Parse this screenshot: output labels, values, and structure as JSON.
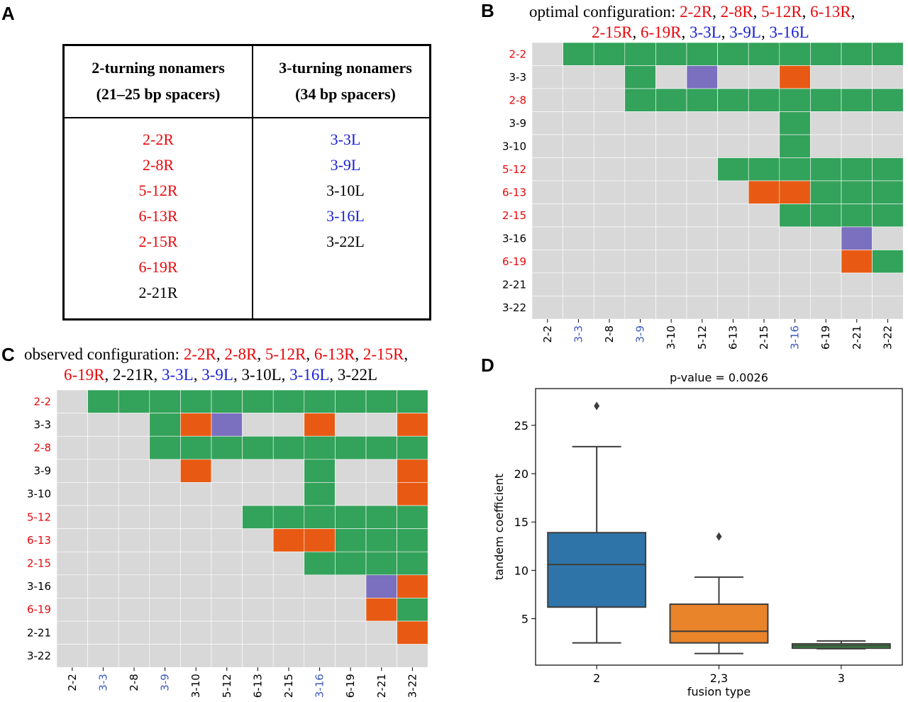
{
  "panels": {
    "a": "A",
    "b": "B",
    "c": "C",
    "d": "D"
  },
  "colors": {
    "red": "#e8080c",
    "blue": "#1a21d8",
    "black": "#000000",
    "axis_blue": "#3f5bbf",
    "green": "#33a25a",
    "orange": "#e85a13",
    "purple": "#7b6fbf",
    "grey": "#d8d8d8"
  },
  "table": {
    "col1_header": [
      "2-turning nonamers",
      "(21–25 bp spacers)"
    ],
    "col2_header": [
      "3-turning nonamers",
      "(34 bp spacers)"
    ],
    "col1": [
      {
        "text": "2-2R",
        "color": "red"
      },
      {
        "text": "2-8R",
        "color": "red"
      },
      {
        "text": "5-12R",
        "color": "red"
      },
      {
        "text": "6-13R",
        "color": "red"
      },
      {
        "text": "2-15R",
        "color": "red"
      },
      {
        "text": "6-19R",
        "color": "red"
      },
      {
        "text": "2-21R",
        "color": "black"
      }
    ],
    "col2": [
      {
        "text": "3-3L",
        "color": "blue"
      },
      {
        "text": "3-9L",
        "color": "blue"
      },
      {
        "text": "3-10L",
        "color": "black"
      },
      {
        "text": "3-16L",
        "color": "blue"
      },
      {
        "text": "3-22L",
        "color": "black"
      }
    ]
  },
  "chart_data": [
    {
      "type": "heatmap",
      "id": "B",
      "title_lines": [
        [
          {
            "text": "optimal configuration: ",
            "color": "black"
          },
          {
            "text": "2-2R",
            "color": "red"
          },
          {
            "text": ", ",
            "color": "black"
          },
          {
            "text": "2-8R",
            "color": "red"
          },
          {
            "text": ", ",
            "color": "black"
          },
          {
            "text": "5-12R",
            "color": "red"
          },
          {
            "text": ", ",
            "color": "black"
          },
          {
            "text": "6-13R",
            "color": "red"
          },
          {
            "text": ",",
            "color": "black"
          }
        ],
        [
          {
            "text": "2-15R",
            "color": "red"
          },
          {
            "text": ", ",
            "color": "black"
          },
          {
            "text": "6-19R",
            "color": "red"
          },
          {
            "text": ", ",
            "color": "black"
          },
          {
            "text": "3-3L",
            "color": "blue"
          },
          {
            "text": ", ",
            "color": "black"
          },
          {
            "text": "3-9L",
            "color": "blue"
          },
          {
            "text": ", ",
            "color": "black"
          },
          {
            "text": "3-16L",
            "color": "blue"
          }
        ]
      ],
      "labels": [
        "2-2",
        "3-3",
        "2-8",
        "3-9",
        "3-10",
        "5-12",
        "6-13",
        "2-15",
        "3-16",
        "6-19",
        "2-21",
        "3-22"
      ],
      "row_label_colors": [
        "red",
        "black",
        "red",
        "black",
        "black",
        "red",
        "red",
        "red",
        "black",
        "red",
        "black",
        "black"
      ],
      "col_label_colors": [
        "black",
        "axis_blue",
        "black",
        "axis_blue",
        "black",
        "black",
        "black",
        "black",
        "axis_blue",
        "black",
        "black",
        "black"
      ],
      "legend": {
        "0": "grey",
        "1": "green",
        "2": "orange",
        "3": "purple"
      },
      "matrix": [
        [
          0,
          1,
          1,
          1,
          1,
          1,
          1,
          1,
          1,
          1,
          1,
          1
        ],
        [
          0,
          0,
          0,
          1,
          0,
          3,
          0,
          0,
          2,
          0,
          0,
          0
        ],
        [
          0,
          0,
          0,
          1,
          1,
          1,
          1,
          1,
          1,
          1,
          1,
          1
        ],
        [
          0,
          0,
          0,
          0,
          0,
          0,
          0,
          0,
          1,
          0,
          0,
          0
        ],
        [
          0,
          0,
          0,
          0,
          0,
          0,
          0,
          0,
          1,
          0,
          0,
          0
        ],
        [
          0,
          0,
          0,
          0,
          0,
          0,
          1,
          1,
          1,
          1,
          1,
          1
        ],
        [
          0,
          0,
          0,
          0,
          0,
          0,
          0,
          2,
          2,
          1,
          1,
          1
        ],
        [
          0,
          0,
          0,
          0,
          0,
          0,
          0,
          0,
          1,
          1,
          1,
          1
        ],
        [
          0,
          0,
          0,
          0,
          0,
          0,
          0,
          0,
          0,
          0,
          3,
          0
        ],
        [
          0,
          0,
          0,
          0,
          0,
          0,
          0,
          0,
          0,
          0,
          2,
          1
        ],
        [
          0,
          0,
          0,
          0,
          0,
          0,
          0,
          0,
          0,
          0,
          0,
          0
        ],
        [
          0,
          0,
          0,
          0,
          0,
          0,
          0,
          0,
          0,
          0,
          0,
          0
        ]
      ]
    },
    {
      "type": "heatmap",
      "id": "C",
      "title_lines": [
        [
          {
            "text": "observed configuration: ",
            "color": "black"
          },
          {
            "text": "2-2R",
            "color": "red"
          },
          {
            "text": ", ",
            "color": "black"
          },
          {
            "text": "2-8R",
            "color": "red"
          },
          {
            "text": ", ",
            "color": "black"
          },
          {
            "text": "5-12R",
            "color": "red"
          },
          {
            "text": ", ",
            "color": "black"
          },
          {
            "text": "6-13R",
            "color": "red"
          },
          {
            "text": ", ",
            "color": "black"
          },
          {
            "text": "2-15R",
            "color": "red"
          },
          {
            "text": ",",
            "color": "black"
          }
        ],
        [
          {
            "text": "6-19R",
            "color": "red"
          },
          {
            "text": ", 2-21R, ",
            "color": "black"
          },
          {
            "text": "3-3L",
            "color": "blue"
          },
          {
            "text": ", ",
            "color": "black"
          },
          {
            "text": "3-9L",
            "color": "blue"
          },
          {
            "text": ", 3-10L, ",
            "color": "black"
          },
          {
            "text": "3-16L",
            "color": "blue"
          },
          {
            "text": ", 3-22L",
            "color": "black"
          }
        ]
      ],
      "labels": [
        "2-2",
        "3-3",
        "2-8",
        "3-9",
        "3-10",
        "5-12",
        "6-13",
        "2-15",
        "3-16",
        "6-19",
        "2-21",
        "3-22"
      ],
      "row_label_colors": [
        "red",
        "black",
        "red",
        "black",
        "black",
        "red",
        "red",
        "red",
        "black",
        "red",
        "black",
        "black"
      ],
      "col_label_colors": [
        "black",
        "axis_blue",
        "black",
        "axis_blue",
        "black",
        "black",
        "black",
        "black",
        "axis_blue",
        "black",
        "black",
        "black"
      ],
      "legend": {
        "0": "grey",
        "1": "green",
        "2": "orange",
        "3": "purple"
      },
      "matrix": [
        [
          0,
          1,
          1,
          1,
          1,
          1,
          1,
          1,
          1,
          1,
          1,
          1
        ],
        [
          0,
          0,
          0,
          1,
          2,
          3,
          0,
          0,
          2,
          0,
          0,
          2
        ],
        [
          0,
          0,
          0,
          1,
          1,
          1,
          1,
          1,
          1,
          1,
          1,
          1
        ],
        [
          0,
          0,
          0,
          0,
          2,
          0,
          0,
          0,
          1,
          0,
          0,
          2
        ],
        [
          0,
          0,
          0,
          0,
          0,
          0,
          0,
          0,
          1,
          0,
          0,
          2
        ],
        [
          0,
          0,
          0,
          0,
          0,
          0,
          1,
          1,
          1,
          1,
          1,
          1
        ],
        [
          0,
          0,
          0,
          0,
          0,
          0,
          0,
          2,
          2,
          1,
          1,
          1
        ],
        [
          0,
          0,
          0,
          0,
          0,
          0,
          0,
          0,
          1,
          1,
          1,
          1
        ],
        [
          0,
          0,
          0,
          0,
          0,
          0,
          0,
          0,
          0,
          0,
          3,
          2
        ],
        [
          0,
          0,
          0,
          0,
          0,
          0,
          0,
          0,
          0,
          0,
          2,
          1
        ],
        [
          0,
          0,
          0,
          0,
          0,
          0,
          0,
          0,
          0,
          0,
          0,
          2
        ],
        [
          0,
          0,
          0,
          0,
          0,
          0,
          0,
          0,
          0,
          0,
          0,
          0
        ]
      ]
    },
    {
      "type": "boxplot",
      "id": "D",
      "title": "p-value = 0.0026",
      "xlabel": "fusion type",
      "ylabel": "tandem coefficient",
      "ylim": [
        0.2,
        28.8
      ],
      "yticks": [
        5,
        10,
        15,
        20,
        25
      ],
      "categories": [
        "2",
        "2,3",
        "3"
      ],
      "boxes": [
        {
          "name": "2",
          "color": "#2e74a8",
          "whisker_low": 2.5,
          "q1": 6.2,
          "median": 10.6,
          "q3": 13.9,
          "whisker_high": 22.8,
          "outliers": [
            27.0
          ]
        },
        {
          "name": "2,3",
          "color": "#e9842a",
          "whisker_low": 1.4,
          "q1": 2.5,
          "median": 3.7,
          "q3": 6.5,
          "whisker_high": 9.3,
          "outliers": [
            13.5
          ]
        },
        {
          "name": "3",
          "color": "#3b9a45",
          "whisker_low": 1.9,
          "q1": 1.95,
          "median": 2.2,
          "q3": 2.4,
          "whisker_high": 2.7,
          "outliers": []
        }
      ]
    }
  ]
}
